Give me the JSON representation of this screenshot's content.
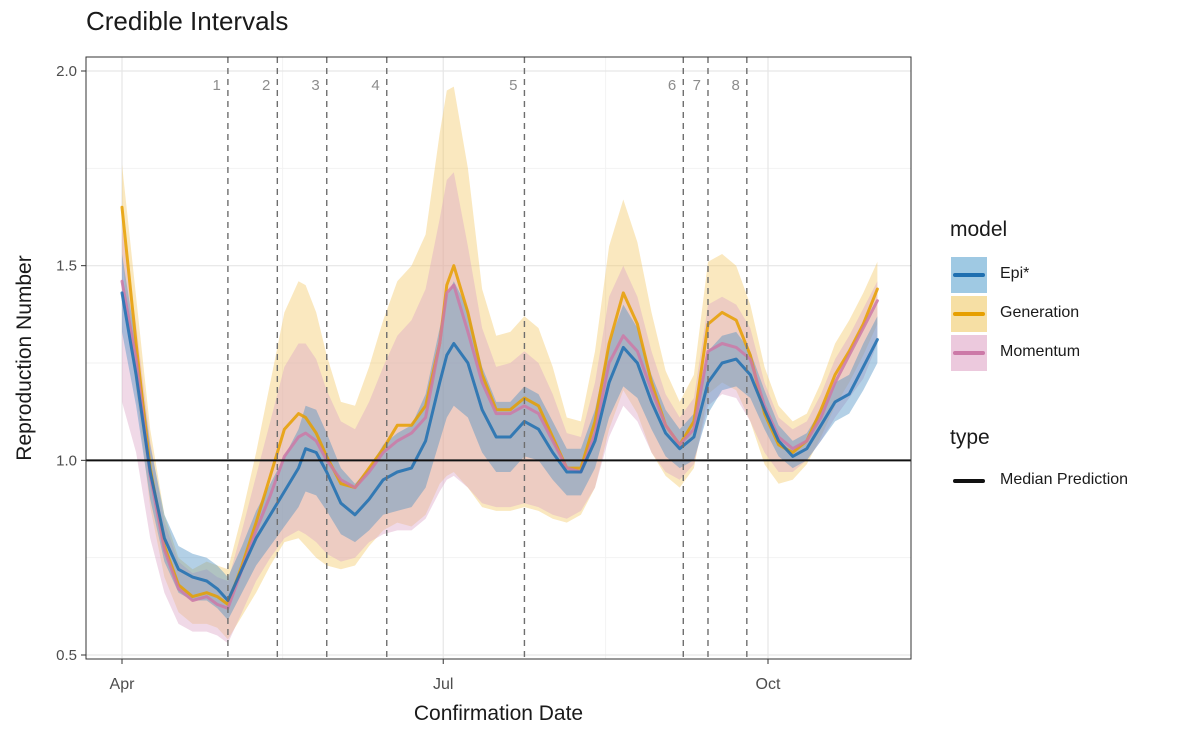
{
  "chart_data": {
    "type": "line",
    "title": "Credible Intervals",
    "xlabel": "Confirmation Date",
    "ylabel": "Reproduction Number",
    "x_ticks": [
      {
        "label": "Apr",
        "day": 0
      },
      {
        "label": "Jul",
        "day": 91
      },
      {
        "label": "Oct",
        "day": 183
      }
    ],
    "y_ticks": [
      0.5,
      1.0,
      1.5,
      2.0
    ],
    "y_tick_labels": [
      "0.5",
      "1.0",
      "1.5",
      "2.0"
    ],
    "ylim": [
      0.5,
      2.0
    ],
    "xlim_days": [
      0,
      219
    ],
    "reference_line": {
      "y": 1.0,
      "legend": "Median Prediction"
    },
    "interventions": [
      {
        "label": "1",
        "day": 30
      },
      {
        "label": "2",
        "day": 44
      },
      {
        "label": "3",
        "day": 58
      },
      {
        "label": "4",
        "day": 75
      },
      {
        "label": "5",
        "day": 114
      },
      {
        "label": "6",
        "day": 159
      },
      {
        "label": "7",
        "day": 166
      },
      {
        "label": "8",
        "day": 177
      }
    ],
    "series": [
      {
        "name": "Epi*",
        "color": "#1f6fb0",
        "band_color": "#4a90c4",
        "x": [
          0,
          4,
          8,
          12,
          16,
          20,
          24,
          27,
          30,
          34,
          38,
          42,
          46,
          50,
          52,
          55,
          58,
          62,
          66,
          70,
          74,
          78,
          82,
          86,
          90,
          92,
          94,
          98,
          102,
          106,
          110,
          114,
          118,
          122,
          126,
          130,
          134,
          138,
          142,
          146,
          150,
          154,
          158,
          162,
          166,
          170,
          174,
          178,
          182,
          186,
          190,
          194,
          198,
          202,
          206,
          210,
          214
        ],
        "median": [
          1.43,
          1.22,
          0.97,
          0.8,
          0.72,
          0.7,
          0.69,
          0.67,
          0.64,
          0.72,
          0.8,
          0.86,
          0.92,
          0.98,
          1.03,
          1.02,
          0.97,
          0.89,
          0.86,
          0.9,
          0.95,
          0.97,
          0.98,
          1.05,
          1.2,
          1.27,
          1.3,
          1.25,
          1.13,
          1.06,
          1.06,
          1.1,
          1.08,
          1.02,
          0.97,
          0.97,
          1.05,
          1.2,
          1.29,
          1.25,
          1.15,
          1.07,
          1.03,
          1.06,
          1.2,
          1.25,
          1.26,
          1.22,
          1.13,
          1.05,
          1.01,
          1.03,
          1.09,
          1.15,
          1.17,
          1.24,
          1.31
        ],
        "lower": [
          1.33,
          1.14,
          0.9,
          0.74,
          0.66,
          0.64,
          0.64,
          0.62,
          0.59,
          0.66,
          0.73,
          0.78,
          0.83,
          0.88,
          0.92,
          0.91,
          0.87,
          0.81,
          0.79,
          0.82,
          0.86,
          0.87,
          0.88,
          0.93,
          1.05,
          1.11,
          1.14,
          1.11,
          1.02,
          0.97,
          0.97,
          1.01,
          1.0,
          0.95,
          0.91,
          0.91,
          0.98,
          1.11,
          1.19,
          1.16,
          1.08,
          1.01,
          0.98,
          1.0,
          1.12,
          1.18,
          1.19,
          1.16,
          1.08,
          1.01,
          0.98,
          1.0,
          1.05,
          1.1,
          1.12,
          1.18,
          1.25
        ],
        "upper": [
          1.53,
          1.3,
          1.04,
          0.86,
          0.78,
          0.76,
          0.75,
          0.73,
          0.7,
          0.78,
          0.87,
          0.94,
          1.01,
          1.08,
          1.14,
          1.13,
          1.07,
          0.98,
          0.94,
          0.98,
          1.04,
          1.07,
          1.09,
          1.17,
          1.34,
          1.42,
          1.46,
          1.39,
          1.24,
          1.15,
          1.15,
          1.19,
          1.17,
          1.1,
          1.03,
          1.03,
          1.13,
          1.3,
          1.4,
          1.34,
          1.22,
          1.13,
          1.08,
          1.12,
          1.28,
          1.32,
          1.33,
          1.28,
          1.18,
          1.09,
          1.05,
          1.07,
          1.13,
          1.2,
          1.22,
          1.3,
          1.37
        ]
      },
      {
        "name": "Generation",
        "color": "#e69f00",
        "band_color": "#f2c766",
        "x": [
          0,
          4,
          8,
          12,
          16,
          20,
          24,
          27,
          30,
          34,
          38,
          42,
          46,
          50,
          52,
          55,
          58,
          62,
          66,
          70,
          74,
          78,
          82,
          86,
          90,
          92,
          94,
          98,
          102,
          106,
          110,
          114,
          118,
          122,
          126,
          130,
          134,
          138,
          142,
          146,
          150,
          154,
          158,
          162,
          166,
          170,
          174,
          178,
          182,
          186,
          190,
          194,
          198,
          202,
          206,
          210,
          214
        ],
        "median": [
          1.65,
          1.3,
          0.98,
          0.78,
          0.68,
          0.65,
          0.66,
          0.65,
          0.63,
          0.73,
          0.84,
          0.96,
          1.08,
          1.12,
          1.11,
          1.07,
          1.01,
          0.94,
          0.93,
          0.98,
          1.03,
          1.09,
          1.09,
          1.14,
          1.3,
          1.45,
          1.5,
          1.38,
          1.22,
          1.13,
          1.13,
          1.16,
          1.14,
          1.06,
          0.98,
          0.98,
          1.1,
          1.3,
          1.43,
          1.35,
          1.2,
          1.09,
          1.04,
          1.1,
          1.35,
          1.38,
          1.36,
          1.27,
          1.12,
          1.04,
          1.02,
          1.05,
          1.13,
          1.22,
          1.28,
          1.35,
          1.44
        ],
        "lower": [
          1.52,
          1.18,
          0.88,
          0.7,
          0.61,
          0.58,
          0.58,
          0.57,
          0.54,
          0.6,
          0.66,
          0.73,
          0.79,
          0.8,
          0.78,
          0.75,
          0.73,
          0.72,
          0.73,
          0.78,
          0.82,
          0.84,
          0.83,
          0.86,
          0.94,
          0.96,
          0.97,
          0.93,
          0.88,
          0.87,
          0.87,
          0.88,
          0.87,
          0.85,
          0.84,
          0.86,
          0.93,
          1.08,
          1.18,
          1.12,
          1.02,
          0.96,
          0.93,
          0.98,
          1.17,
          1.2,
          1.18,
          1.1,
          0.99,
          0.94,
          0.95,
          0.99,
          1.06,
          1.14,
          1.2,
          1.27,
          1.35
        ],
        "upper": [
          1.76,
          1.42,
          1.08,
          0.86,
          0.75,
          0.72,
          0.74,
          0.73,
          0.72,
          0.86,
          1.02,
          1.2,
          1.38,
          1.46,
          1.45,
          1.38,
          1.27,
          1.15,
          1.14,
          1.24,
          1.36,
          1.46,
          1.5,
          1.58,
          1.84,
          1.95,
          1.96,
          1.75,
          1.44,
          1.32,
          1.33,
          1.37,
          1.34,
          1.24,
          1.11,
          1.1,
          1.28,
          1.55,
          1.67,
          1.56,
          1.38,
          1.23,
          1.15,
          1.22,
          1.51,
          1.53,
          1.5,
          1.4,
          1.24,
          1.14,
          1.1,
          1.12,
          1.2,
          1.3,
          1.36,
          1.43,
          1.51
        ]
      },
      {
        "name": "Momentum",
        "color": "#cc79a7",
        "band_color": "#dba5c5",
        "x": [
          0,
          4,
          8,
          12,
          16,
          20,
          24,
          27,
          30,
          34,
          38,
          42,
          46,
          50,
          52,
          55,
          58,
          62,
          66,
          70,
          74,
          78,
          82,
          86,
          90,
          92,
          94,
          98,
          102,
          106,
          110,
          114,
          118,
          122,
          126,
          130,
          134,
          138,
          142,
          146,
          150,
          154,
          158,
          162,
          166,
          170,
          174,
          178,
          182,
          186,
          190,
          194,
          198,
          202,
          206,
          210,
          214
        ],
        "median": [
          1.46,
          1.26,
          0.96,
          0.77,
          0.67,
          0.64,
          0.65,
          0.63,
          0.62,
          0.72,
          0.82,
          0.91,
          1.01,
          1.06,
          1.07,
          1.05,
          1.0,
          0.95,
          0.93,
          0.97,
          1.02,
          1.05,
          1.07,
          1.11,
          1.3,
          1.43,
          1.45,
          1.33,
          1.2,
          1.12,
          1.12,
          1.14,
          1.12,
          1.05,
          0.98,
          0.97,
          1.07,
          1.25,
          1.32,
          1.28,
          1.18,
          1.09,
          1.04,
          1.08,
          1.28,
          1.3,
          1.29,
          1.26,
          1.14,
          1.06,
          1.03,
          1.05,
          1.11,
          1.2,
          1.27,
          1.34,
          1.41
        ],
        "lower": [
          1.15,
          1.02,
          0.8,
          0.66,
          0.58,
          0.56,
          0.56,
          0.55,
          0.53,
          0.61,
          0.69,
          0.75,
          0.8,
          0.82,
          0.81,
          0.79,
          0.76,
          0.74,
          0.75,
          0.79,
          0.81,
          0.82,
          0.82,
          0.85,
          0.92,
          0.95,
          0.96,
          0.93,
          0.89,
          0.88,
          0.88,
          0.89,
          0.88,
          0.86,
          0.85,
          0.87,
          0.93,
          1.06,
          1.14,
          1.1,
          1.02,
          0.97,
          0.95,
          0.99,
          1.14,
          1.17,
          1.16,
          1.1,
          1.02,
          0.97,
          0.97,
          1.0,
          1.05,
          1.11,
          1.16,
          1.21,
          1.3
        ],
        "upper": [
          1.6,
          1.35,
          1.05,
          0.84,
          0.74,
          0.71,
          0.72,
          0.7,
          0.69,
          0.82,
          0.96,
          1.1,
          1.24,
          1.3,
          1.3,
          1.26,
          1.18,
          1.1,
          1.08,
          1.15,
          1.24,
          1.32,
          1.36,
          1.44,
          1.62,
          1.72,
          1.74,
          1.55,
          1.34,
          1.24,
          1.25,
          1.28,
          1.25,
          1.17,
          1.07,
          1.06,
          1.2,
          1.42,
          1.5,
          1.42,
          1.28,
          1.17,
          1.11,
          1.16,
          1.4,
          1.42,
          1.4,
          1.34,
          1.2,
          1.11,
          1.08,
          1.1,
          1.17,
          1.26,
          1.32,
          1.39,
          1.46
        ]
      }
    ]
  },
  "legend": {
    "model_title": "model",
    "models": [
      {
        "label": "Epi*",
        "band_color": "#9fc9e3",
        "line_color": "#1f6fb0"
      },
      {
        "label": "Generation",
        "band_color": "#f6dfa4",
        "line_color": "#e69f00"
      },
      {
        "label": "Momentum",
        "band_color": "#ecc9dd",
        "line_color": "#cc79a7"
      }
    ],
    "type_title": "type",
    "type_label": "Median Prediction"
  }
}
